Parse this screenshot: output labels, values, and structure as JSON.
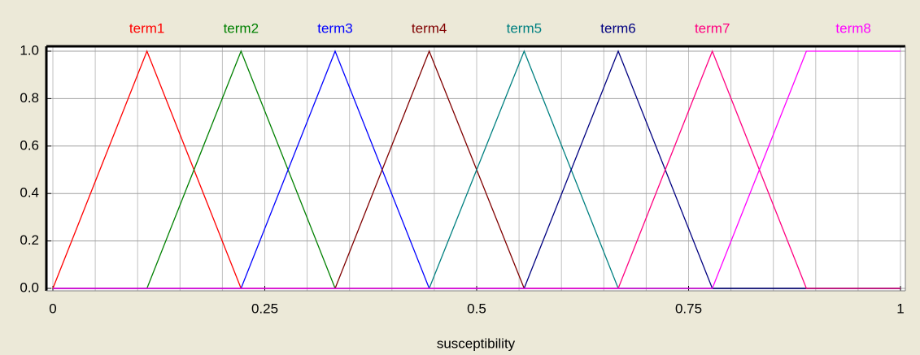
{
  "chart_data": {
    "type": "line",
    "xlabel": "susceptibility",
    "x": [
      0,
      0.111,
      0.222,
      0.333,
      0.444,
      0.556,
      0.667,
      0.778,
      0.889,
      1
    ],
    "series": [
      {
        "name": "term1",
        "color": "#ff0000",
        "values": [
          0,
          1,
          0,
          0,
          0,
          0,
          0,
          0,
          0,
          0
        ]
      },
      {
        "name": "term2",
        "color": "#008000",
        "values": [
          0,
          0,
          1,
          0,
          0,
          0,
          0,
          0,
          0,
          0
        ]
      },
      {
        "name": "term3",
        "color": "#0000ff",
        "values": [
          0,
          0,
          0,
          1,
          0,
          0,
          0,
          0,
          0,
          0
        ]
      },
      {
        "name": "term4",
        "color": "#800000",
        "values": [
          0,
          0,
          0,
          0,
          1,
          0,
          0,
          0,
          0,
          0
        ]
      },
      {
        "name": "term5",
        "color": "#008080",
        "values": [
          0,
          0,
          0,
          0,
          0,
          1,
          0,
          0,
          0,
          0
        ]
      },
      {
        "name": "term6",
        "color": "#000080",
        "values": [
          0,
          0,
          0,
          0,
          0,
          0,
          1,
          0,
          0,
          0
        ]
      },
      {
        "name": "term7",
        "color": "#ff0080",
        "values": [
          0,
          0,
          0,
          0,
          0,
          0,
          0,
          1,
          0,
          0
        ]
      },
      {
        "name": "term8",
        "color": "#ff00ff",
        "values": [
          0,
          0,
          0,
          0,
          0,
          0,
          0,
          0,
          1,
          1
        ]
      }
    ],
    "xlim": [
      0,
      1
    ],
    "xticks": [
      0,
      0.25,
      0.5,
      0.75,
      1
    ],
    "xgrid_step": 0.05,
    "ylim": [
      0,
      1
    ],
    "yticks": [
      {
        "value": 0,
        "label": "0.0"
      },
      0.2,
      0.4,
      0.6,
      0.8,
      {
        "value": 1,
        "label": "1.0"
      }
    ],
    "grid": true
  }
}
